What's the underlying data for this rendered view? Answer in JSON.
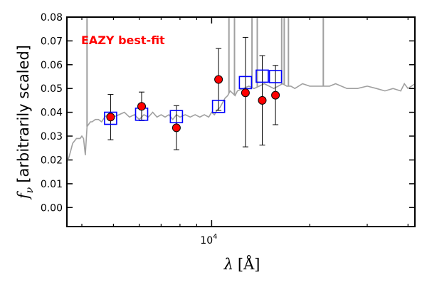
{
  "chart_data": {
    "type": "scatter",
    "annotation": "EAZY best-fit",
    "ylabel_symbol": "f",
    "ylabel_sub": "ν",
    "ylabel_text": "[arbitrarily scaled]",
    "xlabel_symbol": "λ",
    "xlabel_unit": "[Å]",
    "xscale": "log",
    "xlim": [
      3600,
      42000
    ],
    "ylim": [
      -0.008,
      0.08
    ],
    "ytick_values": [
      0.0,
      0.01,
      0.02,
      0.03,
      0.04,
      0.05,
      0.06,
      0.07,
      0.08
    ],
    "ytick_labels": [
      "0.00",
      "0.01",
      "0.02",
      "0.03",
      "0.04",
      "0.05",
      "0.06",
      "0.07",
      "0.08"
    ],
    "xtick_major": [
      {
        "value": 10000,
        "base": "10",
        "exponent": "4"
      }
    ],
    "xtick_minor": [
      4000,
      5000,
      6000,
      7000,
      8000,
      9000,
      20000,
      30000,
      40000
    ],
    "colors": {
      "template": "#a0a0a0",
      "observed_face": "#ff0000",
      "observed_edge": "#000000",
      "model": "#0000ff",
      "annotation": "#ff0000"
    },
    "template_spectrum": {
      "wavelength": [
        3600,
        3650,
        3700,
        3750,
        3800,
        3850,
        3900,
        3950,
        4000,
        4050,
        4100,
        4150,
        4200,
        4250,
        4300,
        4400,
        4500,
        4600,
        4700,
        4800,
        4900,
        5000,
        5200,
        5400,
        5600,
        5800,
        6000,
        6200,
        6400,
        6600,
        6800,
        7000,
        7200,
        7400,
        7600,
        7800,
        8000,
        8300,
        8600,
        8900,
        9200,
        9500,
        9800,
        10000,
        10200,
        10400,
        10600,
        10800,
        11000,
        11200,
        11400,
        11600,
        11800,
        12000,
        12500,
        13000,
        13500,
        14000,
        14500,
        15000,
        15500,
        16000,
        16500,
        17000,
        17500,
        18000,
        19000,
        20000,
        21000,
        22000,
        23000,
        24000,
        26000,
        28000,
        30000,
        32000,
        34000,
        36000,
        38000,
        39000,
        40000,
        41000,
        42000
      ],
      "flux": [
        0.019,
        0.021,
        0.024,
        0.027,
        0.028,
        0.029,
        0.029,
        0.029,
        0.03,
        0.029,
        0.022,
        0.034,
        0.035,
        0.036,
        0.036,
        0.037,
        0.037,
        0.036,
        0.038,
        0.039,
        0.04,
        0.038,
        0.039,
        0.04,
        0.038,
        0.039,
        0.037,
        0.039,
        0.038,
        0.04,
        0.038,
        0.039,
        0.038,
        0.039,
        0.037,
        0.039,
        0.038,
        0.039,
        0.038,
        0.039,
        0.038,
        0.039,
        0.038,
        0.04,
        0.039,
        0.041,
        0.042,
        0.044,
        0.046,
        0.047,
        0.049,
        0.048,
        0.047,
        0.049,
        0.05,
        0.051,
        0.05,
        0.051,
        0.052,
        0.051,
        0.05,
        0.051,
        0.052,
        0.051,
        0.051,
        0.05,
        0.052,
        0.051,
        0.051,
        0.051,
        0.051,
        0.052,
        0.05,
        0.05,
        0.051,
        0.05,
        0.049,
        0.05,
        0.049,
        0.052,
        0.05,
        0.051,
        0.052
      ],
      "emission_lines": [
        {
          "wavelength": 4150,
          "top": 0.085
        },
        {
          "wavelength": 11300,
          "top": 0.085
        },
        {
          "wavelength": 11750,
          "top": 0.085
        },
        {
          "wavelength": 13300,
          "top": 0.085
        },
        {
          "wavelength": 13800,
          "top": 0.085
        },
        {
          "wavelength": 16400,
          "top": 0.085
        },
        {
          "wavelength": 16700,
          "top": 0.085
        },
        {
          "wavelength": 17200,
          "top": 0.085
        },
        {
          "wavelength": 22000,
          "top": 0.085
        }
      ]
    },
    "observed": [
      {
        "x": 4900,
        "y": 0.038,
        "lo": 0.0285,
        "hi": 0.0475
      },
      {
        "x": 6100,
        "y": 0.0425,
        "lo": 0.0365,
        "hi": 0.0485
      },
      {
        "x": 7800,
        "y": 0.0335,
        "lo": 0.0243,
        "hi": 0.0428
      },
      {
        "x": 10500,
        "y": 0.0538,
        "lo": 0.0408,
        "hi": 0.0668
      },
      {
        "x": 12700,
        "y": 0.0482,
        "lo": 0.0255,
        "hi": 0.0715
      },
      {
        "x": 14300,
        "y": 0.045,
        "lo": 0.0262,
        "hi": 0.0638
      },
      {
        "x": 15700,
        "y": 0.0472,
        "lo": 0.0348,
        "hi": 0.0597
      }
    ],
    "model": [
      {
        "x": 4900,
        "y": 0.0375
      },
      {
        "x": 6100,
        "y": 0.0392
      },
      {
        "x": 7800,
        "y": 0.0382
      },
      {
        "x": 10500,
        "y": 0.0425
      },
      {
        "x": 12700,
        "y": 0.0525
      },
      {
        "x": 14300,
        "y": 0.0552
      },
      {
        "x": 15700,
        "y": 0.055
      }
    ]
  }
}
